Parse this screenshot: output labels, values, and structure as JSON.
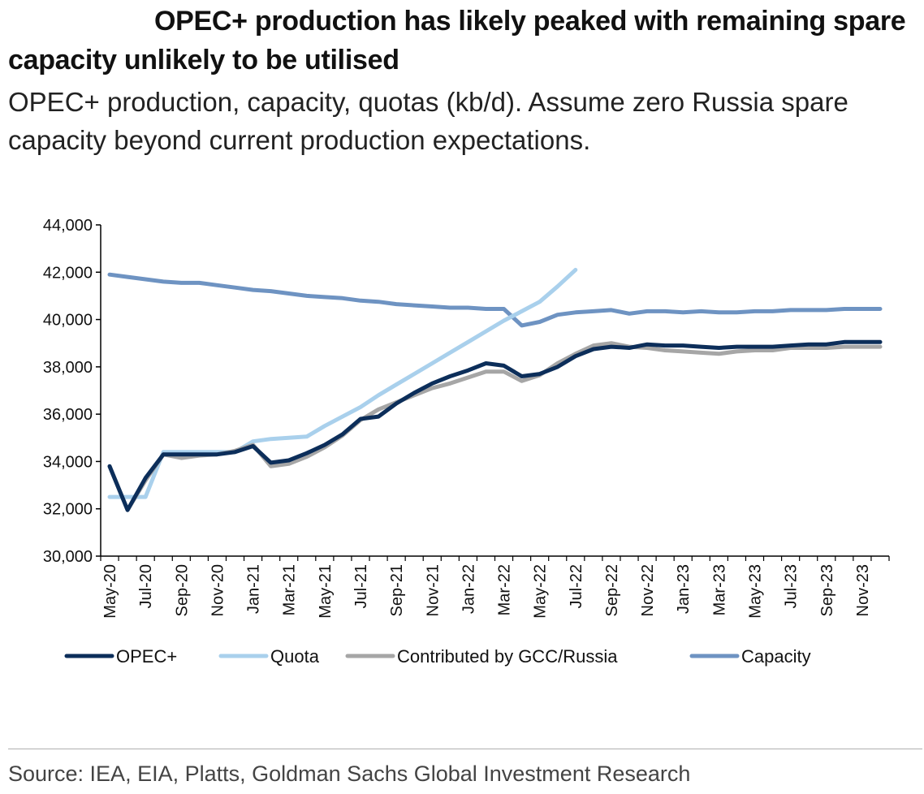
{
  "title": "OPEC+ production has likely peaked with remaining spare capacity unlikely to be utilised",
  "subtitle": "OPEC+ production, capacity, quotas (kb/d). Assume zero Russia spare capacity beyond current production expectations.",
  "source": "Source: IEA, EIA, Platts, Goldman Sachs Global Investment Research",
  "chart_data": {
    "type": "line",
    "title": "OPEC+ production has likely peaked with remaining spare capacity unlikely to be utilised",
    "subtitle": "OPEC+ production, capacity, quotas (kb/d). Assume zero Russia spare capacity beyond current production expectations.",
    "ylim": [
      30000,
      44000
    ],
    "yticks": [
      30000,
      32000,
      34000,
      36000,
      38000,
      40000,
      42000,
      44000
    ],
    "ytick_labels": [
      "30,000",
      "32,000",
      "34,000",
      "36,000",
      "38,000",
      "40,000",
      "42,000",
      "44,000"
    ],
    "x": [
      "May-20",
      "Jun-20",
      "Jul-20",
      "Aug-20",
      "Sep-20",
      "Oct-20",
      "Nov-20",
      "Dec-20",
      "Jan-21",
      "Feb-21",
      "Mar-21",
      "Apr-21",
      "May-21",
      "Jun-21",
      "Jul-21",
      "Aug-21",
      "Sep-21",
      "Oct-21",
      "Nov-21",
      "Dec-21",
      "Jan-22",
      "Feb-22",
      "Mar-22",
      "Apr-22",
      "May-22",
      "Jun-22",
      "Jul-22",
      "Aug-22",
      "Sep-22",
      "Oct-22",
      "Nov-22",
      "Dec-22",
      "Jan-23",
      "Feb-23",
      "Mar-23",
      "Apr-23",
      "May-23",
      "Jun-23",
      "Jul-23",
      "Aug-23",
      "Sep-23",
      "Oct-23",
      "Nov-23",
      "Dec-23"
    ],
    "xtick_labels": [
      "May-20",
      "Jul-20",
      "Sep-20",
      "Nov-20",
      "Jan-21",
      "Mar-21",
      "May-21",
      "Jul-21",
      "Sep-21",
      "Nov-21",
      "Jan-22",
      "Mar-22",
      "May-22",
      "Jul-22",
      "Sep-22",
      "Nov-22",
      "Jan-23",
      "Mar-23",
      "May-23",
      "Jul-23",
      "Sep-23",
      "Nov-23"
    ],
    "legend_position": "bottom",
    "grid": false,
    "series": [
      {
        "name": "Capacity",
        "color": "#6e93c2",
        "values": [
          41900,
          41800,
          41700,
          41600,
          41550,
          41550,
          41450,
          41350,
          41250,
          41200,
          41100,
          41000,
          40950,
          40900,
          40800,
          40750,
          40650,
          40600,
          40550,
          40500,
          40500,
          40450,
          40450,
          39750,
          39900,
          40200,
          40300,
          40350,
          40400,
          40250,
          40350,
          40350,
          40300,
          40350,
          40300,
          40300,
          40350,
          40350,
          40400,
          40400,
          40400,
          40450,
          40450,
          40450
        ]
      },
      {
        "name": "Quota",
        "color": "#a9d0ec",
        "values": [
          32500,
          32500,
          32500,
          34400,
          34400,
          34400,
          34400,
          34400,
          34850,
          34950,
          35000,
          35050,
          35500,
          35900,
          36300,
          36800,
          37250,
          37700,
          38150,
          38600,
          39050,
          39500,
          39950,
          40350,
          40750,
          41400,
          42100,
          null,
          null,
          null,
          null,
          null,
          null,
          null,
          null,
          null,
          null,
          null,
          null,
          null,
          null,
          null,
          null,
          null
        ]
      },
      {
        "name": "Contributed by GCC/Russia",
        "color": "#a6a6a6",
        "values": [
          33800,
          31950,
          33200,
          34300,
          34150,
          34250,
          34300,
          34450,
          34700,
          33800,
          33900,
          34200,
          34600,
          35100,
          35750,
          36200,
          36500,
          36800,
          37100,
          37300,
          37550,
          37800,
          37800,
          37400,
          37650,
          38150,
          38550,
          38900,
          39000,
          38850,
          38800,
          38700,
          38650,
          38600,
          38550,
          38650,
          38700,
          38700,
          38800,
          38800,
          38800,
          38850,
          38850,
          38850
        ]
      },
      {
        "name": "OPEC+",
        "color": "#0c2e5a",
        "values": [
          33800,
          31950,
          33300,
          34300,
          34300,
          34300,
          34300,
          34400,
          34650,
          33950,
          34050,
          34350,
          34700,
          35150,
          35800,
          35900,
          36450,
          36900,
          37300,
          37600,
          37850,
          38150,
          38050,
          37600,
          37700,
          38000,
          38450,
          38750,
          38850,
          38800,
          38950,
          38900,
          38900,
          38850,
          38800,
          38850,
          38850,
          38850,
          38900,
          38950,
          38950,
          39050,
          39050,
          39050
        ]
      }
    ],
    "legend_order": [
      "OPEC+",
      "Quota",
      "Contributed by GCC/Russia",
      "Capacity"
    ]
  }
}
